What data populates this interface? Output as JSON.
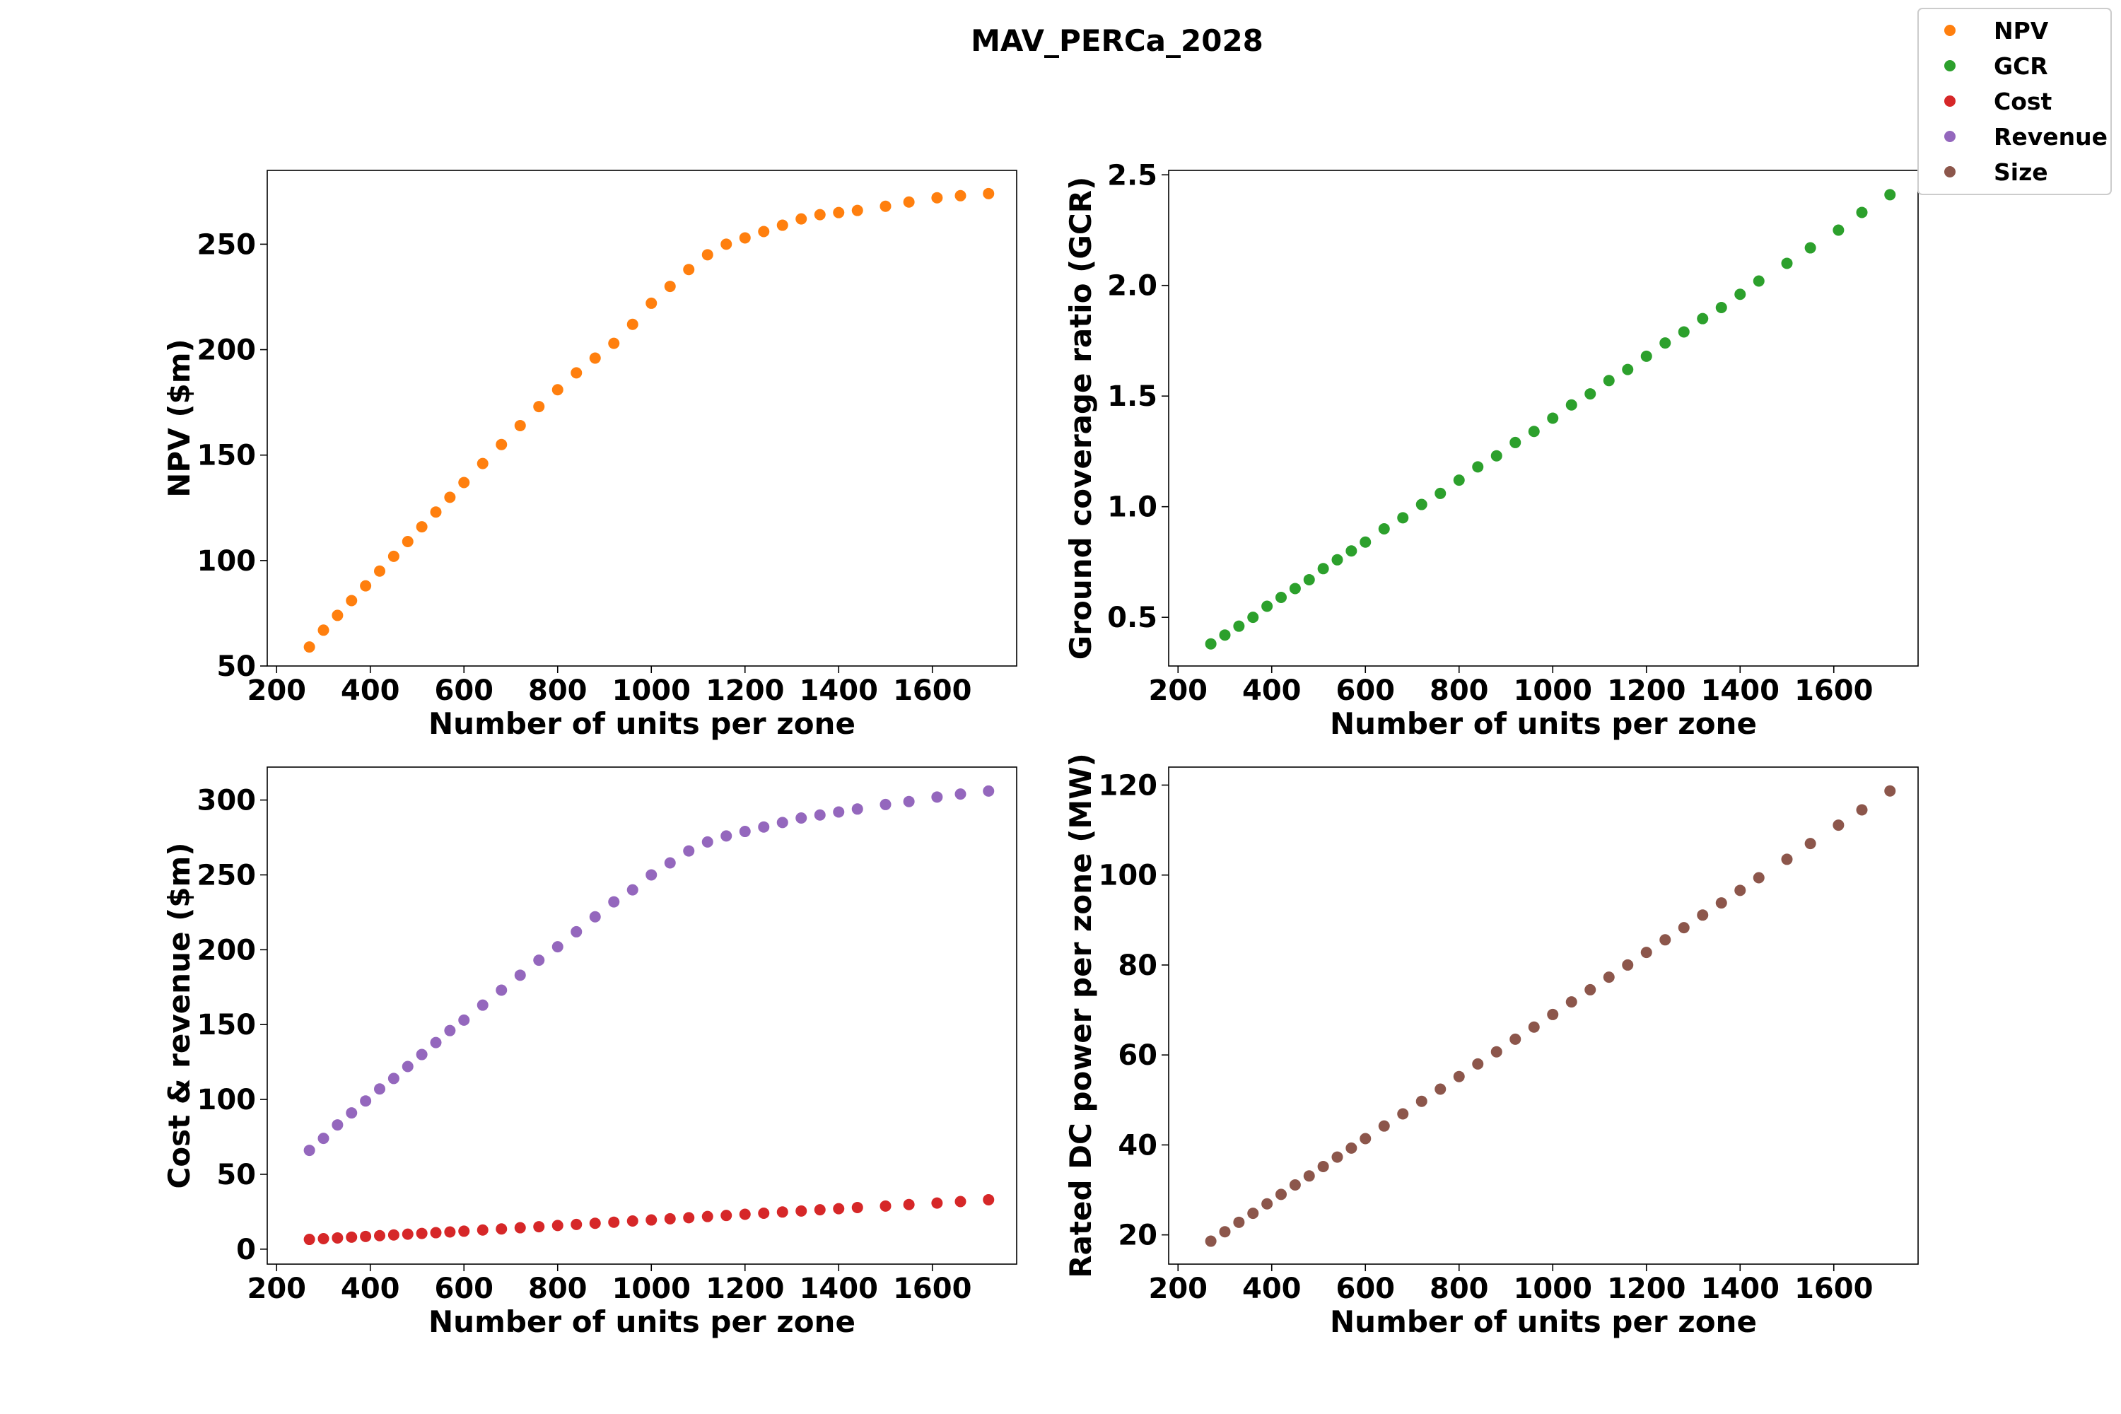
{
  "figure": {
    "title": "MAV_PERCa_2028"
  },
  "legend": {
    "placement": "top-right",
    "entries": [
      {
        "label": "NPV",
        "color": "#ff7f0e"
      },
      {
        "label": "GCR",
        "color": "#2ca02c"
      },
      {
        "label": "Cost",
        "color": "#d62728"
      },
      {
        "label": "Revenue",
        "color": "#9467bd"
      },
      {
        "label": "Size",
        "color": "#8c564b"
      }
    ]
  },
  "chart_data": [
    {
      "type": "scatter",
      "xlabel": "Number of units per zone",
      "ylabel": "NPV ($m)",
      "xlim": [
        180,
        1780
      ],
      "ylim": [
        50,
        285
      ],
      "xticks": [
        200,
        400,
        600,
        800,
        1000,
        1200,
        1400,
        1600
      ],
      "yticks": [
        50,
        100,
        150,
        200,
        250
      ],
      "tick_decimals": 0,
      "grid": false,
      "series": [
        {
          "name": "NPV",
          "color": "#ff7f0e",
          "x": [
            270,
            300,
            330,
            360,
            390,
            420,
            450,
            480,
            510,
            540,
            570,
            600,
            640,
            680,
            720,
            760,
            800,
            840,
            880,
            920,
            960,
            1000,
            1040,
            1080,
            1120,
            1160,
            1200,
            1240,
            1280,
            1320,
            1360,
            1400,
            1440,
            1500,
            1550,
            1610,
            1660,
            1720
          ],
          "y": [
            59,
            67,
            74,
            81,
            88,
            95,
            102,
            109,
            116,
            123,
            130,
            137,
            146,
            155,
            164,
            173,
            181,
            189,
            196,
            203,
            212,
            222,
            230,
            238,
            245,
            250,
            253,
            256,
            259,
            262,
            264,
            265,
            266,
            268,
            270,
            272,
            273,
            274
          ]
        }
      ]
    },
    {
      "type": "scatter",
      "xlabel": "Number of units per zone",
      "ylabel": "Ground coverage ratio (GCR)",
      "xlim": [
        180,
        1780
      ],
      "ylim": [
        0.28,
        2.52
      ],
      "xticks": [
        200,
        400,
        600,
        800,
        1000,
        1200,
        1400,
        1600
      ],
      "yticks": [
        0.5,
        1.0,
        1.5,
        2.0,
        2.5
      ],
      "tick_decimals": 1,
      "grid": false,
      "series": [
        {
          "name": "GCR",
          "color": "#2ca02c",
          "x": [
            270,
            300,
            330,
            360,
            390,
            420,
            450,
            480,
            510,
            540,
            570,
            600,
            640,
            680,
            720,
            760,
            800,
            840,
            880,
            920,
            960,
            1000,
            1040,
            1080,
            1120,
            1160,
            1200,
            1240,
            1280,
            1320,
            1360,
            1400,
            1440,
            1500,
            1550,
            1610,
            1660,
            1720
          ],
          "y": [
            0.38,
            0.42,
            0.46,
            0.5,
            0.55,
            0.59,
            0.63,
            0.67,
            0.72,
            0.76,
            0.8,
            0.84,
            0.9,
            0.95,
            1.01,
            1.06,
            1.12,
            1.18,
            1.23,
            1.29,
            1.34,
            1.4,
            1.46,
            1.51,
            1.57,
            1.62,
            1.68,
            1.74,
            1.79,
            1.85,
            1.9,
            1.96,
            2.02,
            2.1,
            2.17,
            2.25,
            2.33,
            2.41
          ]
        }
      ]
    },
    {
      "type": "scatter",
      "xlabel": "Number of units per zone",
      "ylabel": "Cost & revenue ($m)",
      "xlim": [
        180,
        1780
      ],
      "ylim": [
        -10,
        322
      ],
      "xticks": [
        200,
        400,
        600,
        800,
        1000,
        1200,
        1400,
        1600
      ],
      "yticks": [
        0,
        50,
        100,
        150,
        200,
        250,
        300
      ],
      "tick_decimals": 0,
      "grid": false,
      "series": [
        {
          "name": "Revenue",
          "color": "#9467bd",
          "x": [
            270,
            300,
            330,
            360,
            390,
            420,
            450,
            480,
            510,
            540,
            570,
            600,
            640,
            680,
            720,
            760,
            800,
            840,
            880,
            920,
            960,
            1000,
            1040,
            1080,
            1120,
            1160,
            1200,
            1240,
            1280,
            1320,
            1360,
            1400,
            1440,
            1500,
            1550,
            1610,
            1660,
            1720
          ],
          "y": [
            66,
            74,
            83,
            91,
            99,
            107,
            114,
            122,
            130,
            138,
            146,
            153,
            163,
            173,
            183,
            193,
            202,
            212,
            222,
            232,
            240,
            250,
            258,
            266,
            272,
            276,
            279,
            282,
            285,
            288,
            290,
            292,
            294,
            297,
            299,
            302,
            304,
            306
          ]
        },
        {
          "name": "Cost",
          "color": "#d62728",
          "x": [
            270,
            300,
            330,
            360,
            390,
            420,
            450,
            480,
            510,
            540,
            570,
            600,
            640,
            680,
            720,
            760,
            800,
            840,
            880,
            920,
            960,
            1000,
            1040,
            1080,
            1120,
            1160,
            1200,
            1240,
            1280,
            1320,
            1360,
            1400,
            1440,
            1500,
            1550,
            1610,
            1660,
            1720
          ],
          "y": [
            6.5,
            7,
            7.5,
            8,
            8.5,
            9,
            9.5,
            10,
            10.5,
            11,
            11.5,
            12,
            12.8,
            13.5,
            14.3,
            15,
            15.8,
            16.5,
            17.3,
            18,
            18.8,
            19.5,
            20.3,
            21,
            21.8,
            22.5,
            23.3,
            24,
            24.8,
            25.5,
            26.3,
            27,
            27.8,
            28.8,
            29.8,
            30.8,
            31.8,
            33
          ]
        }
      ]
    },
    {
      "type": "scatter",
      "xlabel": "Number of units per zone",
      "ylabel": "Rated DC power per zone (MW)",
      "xlim": [
        180,
        1780
      ],
      "ylim": [
        13.5,
        124
      ],
      "xticks": [
        200,
        400,
        600,
        800,
        1000,
        1200,
        1400,
        1600
      ],
      "yticks": [
        20,
        40,
        60,
        80,
        100,
        120
      ],
      "tick_decimals": 0,
      "grid": false,
      "series": [
        {
          "name": "Size",
          "color": "#8c564b",
          "x": [
            270,
            300,
            330,
            360,
            390,
            420,
            450,
            480,
            510,
            540,
            570,
            600,
            640,
            680,
            720,
            760,
            800,
            840,
            880,
            920,
            960,
            1000,
            1040,
            1080,
            1120,
            1160,
            1200,
            1240,
            1280,
            1320,
            1360,
            1400,
            1440,
            1500,
            1550,
            1610,
            1660,
            1720
          ],
          "y": [
            18.6,
            20.7,
            22.8,
            24.8,
            26.9,
            29,
            31.1,
            33.1,
            35.2,
            37.3,
            39.3,
            41.4,
            44.2,
            46.9,
            49.7,
            52.4,
            55.2,
            58,
            60.7,
            63.5,
            66.2,
            69,
            71.8,
            74.5,
            77.3,
            80,
            82.8,
            85.6,
            88.3,
            91.1,
            93.8,
            96.6,
            99.4,
            103.5,
            107,
            111.1,
            114.5,
            118.7
          ]
        }
      ]
    }
  ]
}
